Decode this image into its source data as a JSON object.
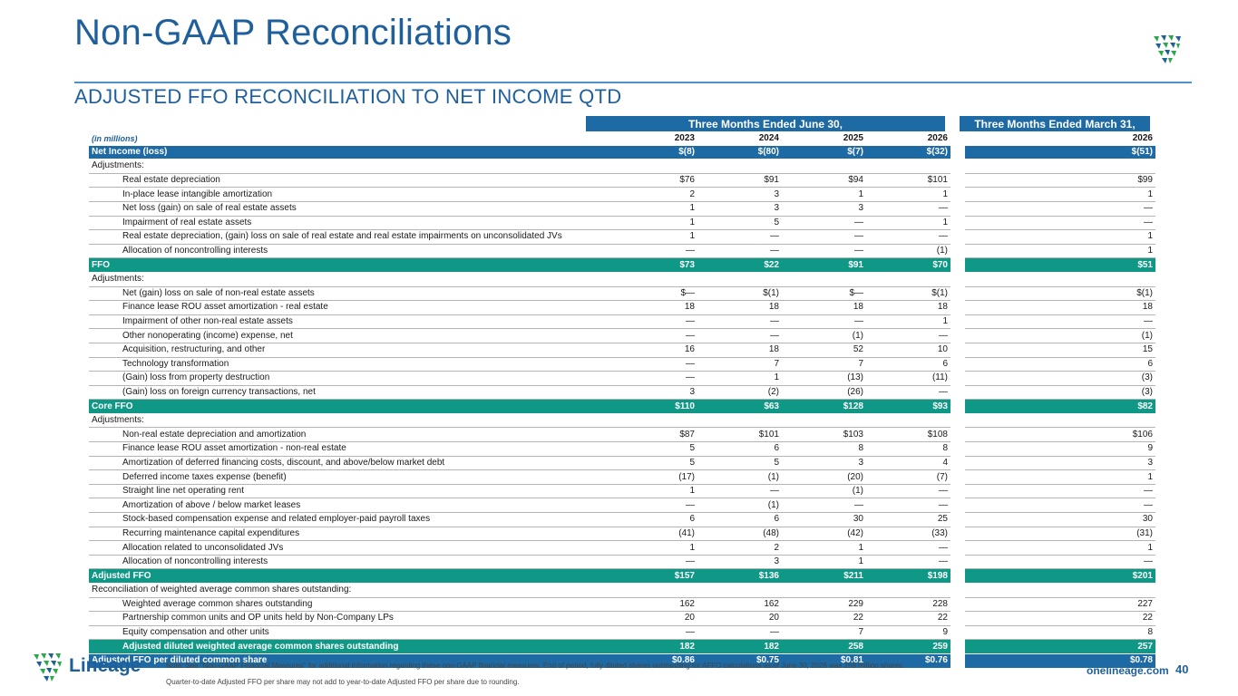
{
  "header": {
    "title": "Non-GAAP Reconciliations",
    "subtitle": "ADJUSTED FFO RECONCILIATION TO NET INCOME QTD"
  },
  "table": {
    "group_q2": "Three Months Ended June 30,",
    "group_q1": "Three Months Ended March 31,",
    "units": "(in millions)",
    "years": [
      "2023",
      "2024",
      "2025",
      "2026"
    ],
    "year_q1": "2026",
    "rows": [
      {
        "type": "blue",
        "label": "Net Income (loss)",
        "v": [
          "$(8)",
          "$(80)",
          "$(7)",
          "$(32)"
        ],
        "q1": "$(51)"
      },
      {
        "type": "sec",
        "label": "Adjustments:",
        "v": [
          "",
          "",
          "",
          ""
        ],
        "q1": ""
      },
      {
        "type": "row",
        "label": "Real estate depreciation",
        "v": [
          "$76",
          "$91",
          "$94",
          "$101"
        ],
        "q1": "$99"
      },
      {
        "type": "row",
        "label": "In-place lease intangible amortization",
        "v": [
          "2",
          "3",
          "1",
          "1"
        ],
        "q1": "1"
      },
      {
        "type": "row",
        "label": "Net loss (gain) on sale of real estate assets",
        "v": [
          "1",
          "3",
          "3",
          "—"
        ],
        "q1": "—"
      },
      {
        "type": "row",
        "label": "Impairment of real estate assets",
        "v": [
          "1",
          "5",
          "—",
          "1"
        ],
        "q1": "—"
      },
      {
        "type": "row",
        "label": "Real estate depreciation, (gain) loss on sale of real estate and real estate impairments on unconsolidated JVs",
        "v": [
          "1",
          "—",
          "—",
          "—"
        ],
        "q1": "1"
      },
      {
        "type": "row",
        "label": "Allocation of noncontrolling interests",
        "v": [
          "—",
          "—",
          "—",
          "(1)"
        ],
        "q1": "1"
      },
      {
        "type": "green",
        "label": "FFO",
        "v": [
          "$73",
          "$22",
          "$91",
          "$70"
        ],
        "q1": "$51"
      },
      {
        "type": "sec",
        "label": "Adjustments:",
        "v": [
          "",
          "",
          "",
          ""
        ],
        "q1": ""
      },
      {
        "type": "row",
        "label": "Net (gain) loss on sale of non-real estate assets",
        "v": [
          "$—",
          "$(1)",
          "$—",
          "$(1)"
        ],
        "q1": "$(1)"
      },
      {
        "type": "row",
        "label": "Finance lease ROU asset amortization - real estate",
        "v": [
          "18",
          "18",
          "18",
          "18"
        ],
        "q1": "18"
      },
      {
        "type": "row",
        "label": "Impairment of other non-real estate assets",
        "v": [
          "—",
          "—",
          "—",
          "1"
        ],
        "q1": "—"
      },
      {
        "type": "row",
        "label": "Other nonoperating (income) expense, net",
        "v": [
          "—",
          "—",
          "(1)",
          "—"
        ],
        "q1": "(1)"
      },
      {
        "type": "row",
        "label": "Acquisition, restructuring, and other",
        "v": [
          "16",
          "18",
          "52",
          "10"
        ],
        "q1": "15"
      },
      {
        "type": "row",
        "label": "Technology transformation",
        "v": [
          "—",
          "7",
          "7",
          "6"
        ],
        "q1": "6"
      },
      {
        "type": "row",
        "label": "(Gain) loss from property destruction",
        "v": [
          "—",
          "1",
          "(13)",
          "(11)"
        ],
        "q1": "(3)"
      },
      {
        "type": "row",
        "label": "(Gain) loss on foreign currency transactions, net",
        "v": [
          "3",
          "(2)",
          "(26)",
          "—"
        ],
        "q1": "(3)"
      },
      {
        "type": "green",
        "label": "Core FFO",
        "v": [
          "$110",
          "$63",
          "$128",
          "$93"
        ],
        "q1": "$82"
      },
      {
        "type": "sec",
        "label": "Adjustments:",
        "v": [
          "",
          "",
          "",
          ""
        ],
        "q1": ""
      },
      {
        "type": "row",
        "label": "Non-real estate depreciation and amortization",
        "v": [
          "$87",
          "$101",
          "$103",
          "$108"
        ],
        "q1": "$106"
      },
      {
        "type": "row",
        "label": "Finance lease ROU asset amortization - non-real estate",
        "v": [
          "5",
          "6",
          "8",
          "8"
        ],
        "q1": "9"
      },
      {
        "type": "row",
        "label": "Amortization of deferred financing costs, discount, and above/below market debt",
        "v": [
          "5",
          "5",
          "3",
          "4"
        ],
        "q1": "3"
      },
      {
        "type": "row",
        "label": "Deferred income taxes expense (benefit)",
        "v": [
          "(17)",
          "(1)",
          "(20)",
          "(7)"
        ],
        "q1": "1"
      },
      {
        "type": "row",
        "label": "Straight line net operating rent",
        "v": [
          "1",
          "—",
          "(1)",
          "—"
        ],
        "q1": "—"
      },
      {
        "type": "row",
        "label": "Amortization of above / below market leases",
        "v": [
          "—",
          "(1)",
          "—",
          "—"
        ],
        "q1": "—"
      },
      {
        "type": "row",
        "label": "Stock-based compensation expense and related employer-paid payroll taxes",
        "v": [
          "6",
          "6",
          "30",
          "25"
        ],
        "q1": "30"
      },
      {
        "type": "row",
        "label": "Recurring maintenance capital expenditures",
        "v": [
          "(41)",
          "(48)",
          "(42)",
          "(33)"
        ],
        "q1": "(31)"
      },
      {
        "type": "row",
        "label": "Allocation related to unconsolidated JVs",
        "v": [
          "1",
          "2",
          "1",
          "—"
        ],
        "q1": "1"
      },
      {
        "type": "row",
        "label": "Allocation of noncontrolling interests",
        "v": [
          "—",
          "3",
          "1",
          "—"
        ],
        "q1": "—"
      },
      {
        "type": "green",
        "label": "Adjusted FFO",
        "v": [
          "$157",
          "$136",
          "$211",
          "$198"
        ],
        "q1": "$201"
      },
      {
        "type": "sec",
        "label": "Reconciliation of weighted average common shares outstanding:",
        "v": [
          "",
          "",
          "",
          ""
        ],
        "q1": ""
      },
      {
        "type": "row",
        "label": "Weighted average common shares outstanding",
        "v": [
          "162",
          "162",
          "229",
          "228"
        ],
        "q1": "227"
      },
      {
        "type": "row",
        "label": "Partnership common units and OP units held by Non-Company LPs",
        "v": [
          "20",
          "20",
          "22",
          "22"
        ],
        "q1": "22"
      },
      {
        "type": "row",
        "label": "Equity compensation and other units",
        "v": [
          "—",
          "—",
          "7",
          "9"
        ],
        "q1": "8"
      },
      {
        "type": "green-ind",
        "label": "Adjusted diluted weighted average common shares outstanding",
        "v": [
          "182",
          "182",
          "258",
          "259"
        ],
        "q1": "257"
      },
      {
        "type": "blue",
        "label": "Adjusted FFO per diluted common share",
        "v": [
          "$0.86",
          "$0.75",
          "$0.81",
          "$0.76"
        ],
        "q1": "$0.78"
      }
    ]
  },
  "footer": {
    "brand": "Lineage",
    "note1": "Note: See \"Non-GAAP Financial Measures\" for additional information regarding these non-GAAP financial measures.  End of period, fully diluted shares outstanding for AFFO calculations as of June 30, 2026 was 259 million shares.",
    "note2": "Quarter-to-date Adjusted FFO per share may not add to year-to-date Adjusted FFO per share due to rounding.",
    "site": "onelineage.com",
    "page": "40"
  },
  "colors": {
    "brand_blue": "#1f5f9c",
    "band_blue": "#1e6aa5",
    "band_green": "#109887",
    "logo_green": "#2aa84a"
  },
  "icons": {
    "logo": "lineage-shield-logo-icon"
  }
}
